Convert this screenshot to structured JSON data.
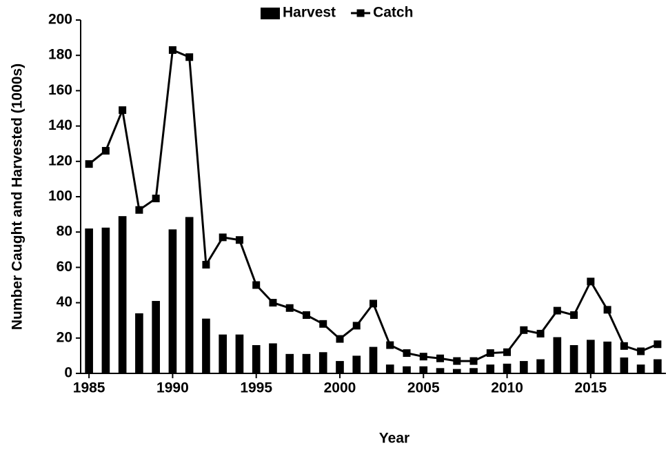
{
  "chart_data": {
    "type": "bar",
    "xlabel": "Year",
    "ylabel": "Number Caught and Harvested (1000s)",
    "x": [
      1985,
      1986,
      1987,
      1988,
      1989,
      1990,
      1991,
      1992,
      1993,
      1994,
      1995,
      1996,
      1997,
      1998,
      1999,
      2000,
      2001,
      2002,
      2003,
      2004,
      2005,
      2006,
      2007,
      2008,
      2009,
      2010,
      2011,
      2012,
      2013,
      2014,
      2015,
      2016,
      2017,
      2018,
      2019
    ],
    "series": [
      {
        "name": "Harvest",
        "type": "bar",
        "color": "#000000",
        "values": [
          82,
          82.5,
          89,
          34,
          41,
          81.5,
          88.5,
          31,
          22,
          22,
          16,
          17,
          11,
          11,
          12,
          7,
          10,
          15,
          5,
          4,
          4,
          3,
          2.5,
          3,
          5,
          5.5,
          7,
          8,
          20.5,
          16,
          19,
          18,
          9,
          5,
          8
        ]
      },
      {
        "name": "Catch",
        "type": "line",
        "color": "#000000",
        "values": [
          118.5,
          126,
          149,
          92.5,
          99,
          183,
          179,
          61.5,
          77,
          75.5,
          50,
          40,
          37,
          33,
          28,
          19.5,
          27,
          39.5,
          16,
          11.5,
          9.5,
          8.5,
          7,
          7,
          11.5,
          12,
          24.5,
          22.5,
          35.5,
          33,
          52,
          36,
          15.5,
          12.5,
          16.5
        ]
      }
    ],
    "xlim": [
      1984.5,
      2019.5
    ],
    "xticks": [
      1985,
      1990,
      1995,
      2000,
      2005,
      2010,
      2015
    ],
    "ylim": [
      0,
      200
    ],
    "yticks": [
      0,
      20,
      40,
      60,
      80,
      100,
      120,
      140,
      160,
      180,
      200
    ],
    "legend": "top"
  }
}
